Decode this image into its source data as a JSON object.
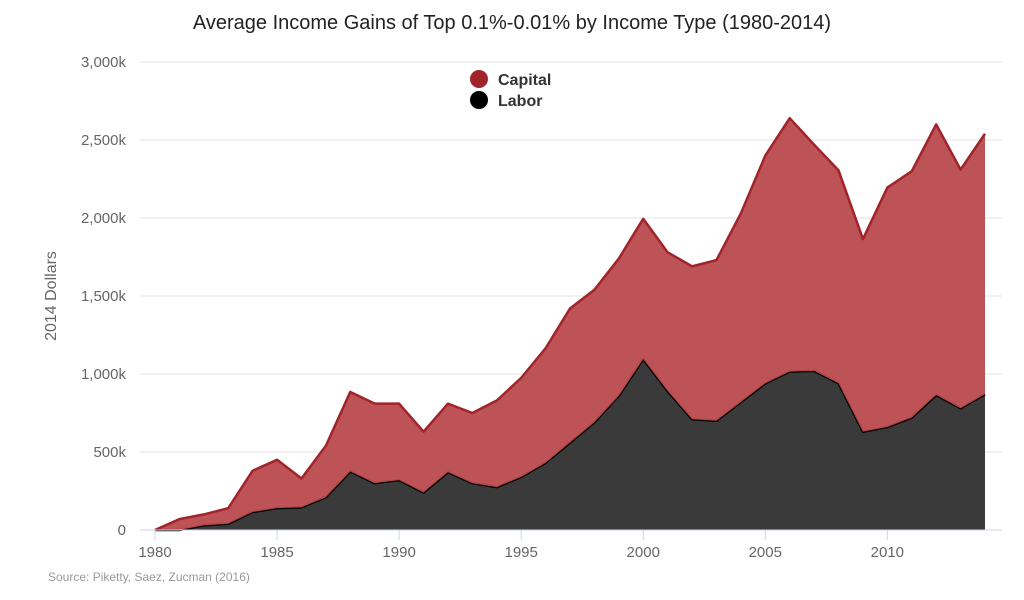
{
  "chart_data": {
    "type": "area",
    "stacked": true,
    "title": "Average Income Gains of Top 0.1%-0.01% by Income Type (1980-2014)",
    "xlabel": "",
    "ylabel": "2014 Dollars",
    "source": "Source: Piketty, Saez, Zucman (2016)",
    "xlim": [
      1980,
      2014
    ],
    "ylim": [
      0,
      3000000
    ],
    "x_ticks": [
      1980,
      1985,
      1990,
      1995,
      2000,
      2005,
      2010
    ],
    "x_tick_labels": [
      "1980",
      "1985",
      "1990",
      "1995",
      "2000",
      "2005",
      "2010"
    ],
    "y_ticks": [
      0,
      500000,
      1000000,
      1500000,
      2000000,
      2500000,
      3000000
    ],
    "y_tick_labels": [
      "0",
      "500k",
      "1,000k",
      "1,500k",
      "2,000k",
      "2,500k",
      "3,000k"
    ],
    "grid": "horizontal",
    "legend_position": "top-center",
    "x": [
      1980,
      1981,
      1982,
      1983,
      1984,
      1985,
      1986,
      1987,
      1988,
      1989,
      1990,
      1991,
      1992,
      1993,
      1994,
      1995,
      1996,
      1997,
      1998,
      1999,
      2000,
      2001,
      2002,
      2003,
      2004,
      2005,
      2006,
      2007,
      2008,
      2009,
      2010,
      2011,
      2012,
      2013,
      2014
    ],
    "series": [
      {
        "name": "Labor",
        "color": "#3a3a3a",
        "line_color": "#000000",
        "values": [
          0,
          0,
          30000,
          40000,
          115000,
          140000,
          145000,
          210000,
          375000,
          300000,
          320000,
          240000,
          370000,
          300000,
          275000,
          340000,
          430000,
          560000,
          690000,
          860000,
          1095000,
          890000,
          710000,
          700000,
          820000,
          940000,
          1015000,
          1020000,
          940000,
          630000,
          660000,
          720000,
          865000,
          780000,
          870000
        ]
      },
      {
        "name": "Capital",
        "color": "#b94a4e",
        "line_color": "#a1232b",
        "values": [
          0,
          70000,
          70000,
          100000,
          265000,
          310000,
          185000,
          330000,
          510000,
          510000,
          490000,
          390000,
          440000,
          450000,
          555000,
          635000,
          735000,
          860000,
          850000,
          880000,
          900000,
          890000,
          980000,
          1030000,
          1210000,
          1460000,
          1625000,
          1450000,
          1365000,
          1235000,
          1535000,
          1580000,
          1735000,
          1530000,
          1670000
        ]
      }
    ]
  },
  "legend": {
    "items": [
      {
        "label": "Capital",
        "color": "#a1232b"
      },
      {
        "label": "Labor",
        "color": "#000000"
      }
    ]
  }
}
